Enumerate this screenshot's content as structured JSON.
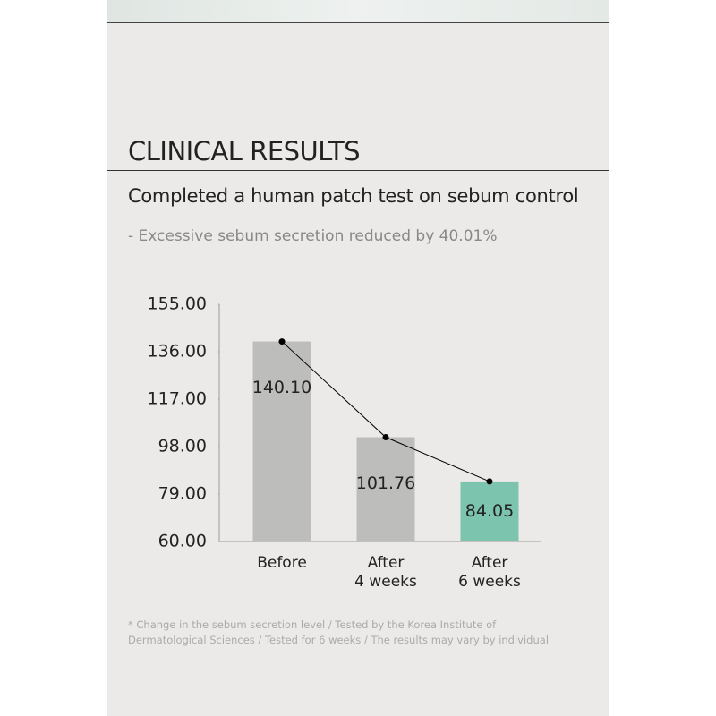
{
  "heading": "CLINICAL RESULTS",
  "subheading": "Completed a human patch test on sebum control",
  "note": "- Excessive sebum secretion reduced by 40.01%",
  "footnote": [
    "* Change in the sebum secretion level / Tested by the Korea Institute of",
    "Dermatological Sciences / Tested for 6 weeks / The results may vary by individual"
  ],
  "chart_data": {
    "type": "bar",
    "categories": [
      "Before",
      "After\n4 weeks",
      "After\n6 weeks"
    ],
    "values": [
      140.1,
      101.76,
      84.05
    ],
    "value_labels": [
      "140.10",
      "101.76",
      "84.05"
    ],
    "colors": [
      "#bdbdbc",
      "#bdbdbc",
      "#7cc4ad"
    ],
    "line_color": "#000000",
    "ylim": [
      60,
      155
    ],
    "yticks": [
      {
        "value": 60,
        "label": "60.00"
      },
      {
        "value": 79,
        "label": "79.00"
      },
      {
        "value": 98,
        "label": "98.00"
      },
      {
        "value": 117,
        "label": "117.00"
      },
      {
        "value": 136,
        "label": "136.00"
      },
      {
        "value": 155,
        "label": "155.00"
      }
    ]
  }
}
